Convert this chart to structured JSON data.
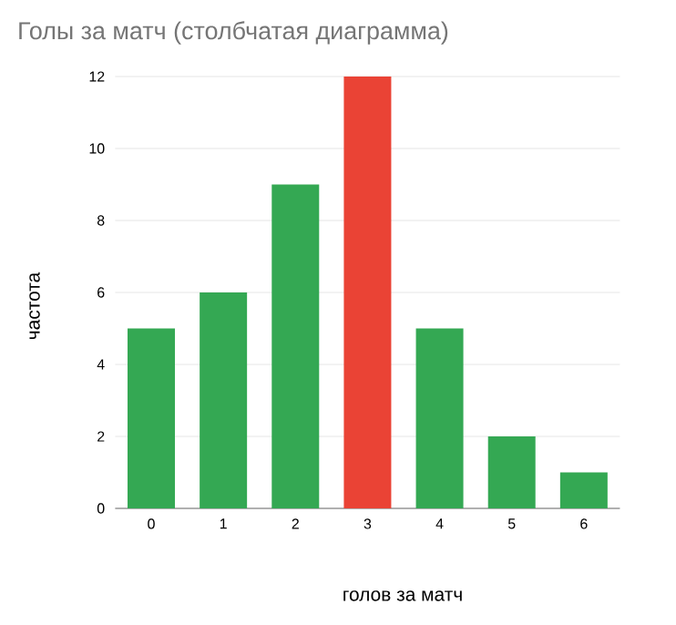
{
  "chart_data": {
    "type": "bar",
    "title": "Голы за матч (столбчатая диаграмма)",
    "xlabel": "голов за матч",
    "ylabel": "частота",
    "categories": [
      "0",
      "1",
      "2",
      "3",
      "4",
      "5",
      "6"
    ],
    "values": [
      5,
      6,
      9,
      12,
      5,
      2,
      1
    ],
    "colors": [
      "#34a853",
      "#34a853",
      "#34a853",
      "#ea4335",
      "#34a853",
      "#34a853",
      "#34a853"
    ],
    "ylim": [
      0,
      12
    ],
    "yticks": [
      0,
      2,
      4,
      6,
      8,
      10,
      12
    ],
    "grid": "y"
  }
}
